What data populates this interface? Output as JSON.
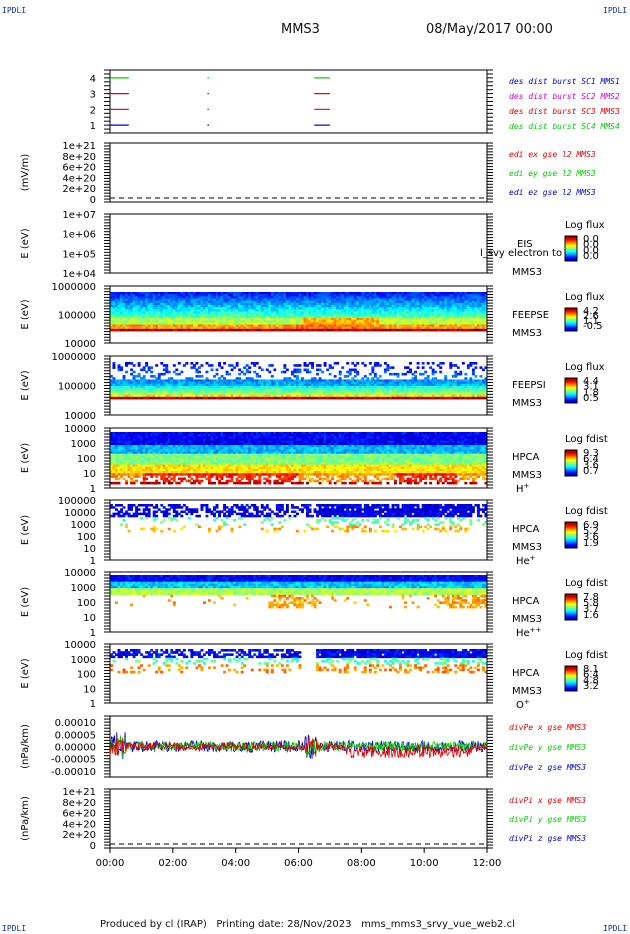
{
  "corner_label": "IPDLI",
  "header": {
    "title": "MMS3",
    "date": "08/May/2017 00:00"
  },
  "footer": {
    "produced_by": "Produced by cl (IRAP)",
    "printing_date": "Printing date: 28/Nov/2023",
    "script": "mms_mms3_srvy_vue_web2.cl"
  },
  "colors": {
    "frame": "#000000",
    "mms1": "#0000cc",
    "mms2": "#cc00cc",
    "mms3": "#dd0000",
    "mms4": "#00cc00"
  },
  "chart_data": [
    {
      "type": "line",
      "id": "des-burst",
      "yticks": [
        "1",
        "2",
        "3",
        "4"
      ],
      "ylim": [
        0.5,
        4.5
      ],
      "legend": [
        {
          "text": "des dist burst SC1 MMS1",
          "color": "#0000cc"
        },
        {
          "text": "des dist burst SC2 MMS2",
          "color": "#cc00cc"
        },
        {
          "text": "des dist burst SC3 MMS3",
          "color": "#dd0000"
        },
        {
          "text": "des dist burst SC4 MMS4",
          "color": "#00cc00"
        }
      ],
      "series": [
        {
          "level": 4,
          "color": "#00cc00",
          "intervals": [
            [
              0.0,
              0.6
            ],
            [
              3.1,
              3.15
            ],
            [
              6.5,
              7.0
            ]
          ]
        },
        {
          "level": 3,
          "color": "#dd0000",
          "intervals": [
            [
              0.0,
              0.6
            ],
            [
              3.1,
              3.15
            ],
            [
              6.5,
              7.0
            ]
          ]
        },
        {
          "level": 2,
          "color": "#cc00cc",
          "intervals": [
            [
              0.0,
              0.6
            ],
            [
              3.1,
              3.15
            ],
            [
              6.5,
              7.0
            ]
          ]
        },
        {
          "level": 1,
          "color": "#0000cc",
          "intervals": [
            [
              0.0,
              0.6
            ],
            [
              3.1,
              3.15
            ],
            [
              6.5,
              7.0
            ]
          ]
        }
      ]
    },
    {
      "type": "line",
      "id": "edi-e",
      "ylabel": "(mV/m)",
      "yticks": [
        "0",
        "2e+20",
        "4e+20",
        "6e+20",
        "8e+20",
        "1e+21"
      ],
      "legend": [
        {
          "text": "edi ex gse l2 MMS3",
          "color": "#dd0000"
        },
        {
          "text": "edi ey gse l2 MMS3",
          "color": "#00cc00"
        },
        {
          "text": "edi ez gse l2 MMS3",
          "color": "#0000cc"
        }
      ]
    },
    {
      "type": "heatmap",
      "id": "eis",
      "ylabel": "E (eV)",
      "yticks": [
        "1e+04",
        "1e+05",
        "1e+06",
        "1e+07"
      ],
      "label_lines": [
        "EIS",
        "MMS3"
      ],
      "overlay_text": "l_svy electron to",
      "colorbar_title": "Log flux",
      "colorbar_ticks": [
        "0.0",
        "0.0",
        "0.0",
        "0.0"
      ]
    },
    {
      "type": "heatmap",
      "id": "feepse",
      "ylabel": "E (eV)",
      "yticks": [
        "10000",
        "100000",
        "1000000"
      ],
      "label_lines": [
        "FEEPSE",
        "MMS3"
      ],
      "colorbar_title": "Log flux",
      "colorbar_ticks": [
        "4.2",
        "2.6",
        "1.1",
        "-0.5"
      ]
    },
    {
      "type": "heatmap",
      "id": "feepsi",
      "ylabel": "E (eV)",
      "yticks": [
        "10000",
        "100000",
        "1000000"
      ],
      "label_lines": [
        "FEEPSI",
        "MMS3"
      ],
      "colorbar_title": "Log flux",
      "colorbar_ticks": [
        "4.4",
        "3.1",
        "1.8",
        "0.5"
      ]
    },
    {
      "type": "heatmap",
      "id": "hpca-h",
      "ylabel": "E (eV)",
      "yticks": [
        "1",
        "10",
        "100",
        "1000",
        "10000"
      ],
      "label_lines": [
        "HPCA",
        "MMS3"
      ],
      "species": "H",
      "species_sup": "+",
      "colorbar_title": "Log fdist",
      "colorbar_ticks": [
        "9.3",
        "6.4",
        "3.6",
        "0.7"
      ]
    },
    {
      "type": "heatmap",
      "id": "hpca-he",
      "ylabel": "E (eV)",
      "yticks": [
        "1",
        "10",
        "100",
        "1000",
        "10000",
        "100000"
      ],
      "label_lines": [
        "HPCA",
        "MMS3"
      ],
      "species": "He",
      "species_sup": "+",
      "colorbar_title": "Log fdist",
      "colorbar_ticks": [
        "6.9",
        "5.2",
        "3.6",
        "1.9"
      ]
    },
    {
      "type": "heatmap",
      "id": "hpca-hepp",
      "ylabel": "E (eV)",
      "yticks": [
        "1",
        "10",
        "100",
        "1000",
        "10000"
      ],
      "label_lines": [
        "HPCA",
        "MMS3"
      ],
      "species": "He",
      "species_sup": "++",
      "colorbar_title": "Log fdist",
      "colorbar_ticks": [
        "7.8",
        "5.8",
        "3.7",
        "1.6"
      ]
    },
    {
      "type": "heatmap",
      "id": "hpca-o",
      "ylabel": "E (eV)",
      "yticks": [
        "1",
        "10",
        "100",
        "1000",
        "10000"
      ],
      "label_lines": [
        "HPCA",
        "MMS3"
      ],
      "species": "O",
      "species_sup": "+",
      "colorbar_title": "Log fdist",
      "colorbar_ticks": [
        "8.1",
        "6.4",
        "4.8",
        "3.2"
      ]
    },
    {
      "type": "line",
      "id": "divpe",
      "ylabel": "(nPa/km)",
      "yticks": [
        "-0.00010",
        "-0.00005",
        "0.00000",
        "0.00005",
        "0.00010"
      ],
      "ylim": [
        -0.000125,
        0.000125
      ],
      "legend": [
        {
          "text": "divPe x gse MMS3",
          "color": "#dd0000"
        },
        {
          "text": "divPe y gse MMS3",
          "color": "#00cc00"
        },
        {
          "text": "divPe z gse MMS3",
          "color": "#0000cc"
        }
      ]
    },
    {
      "type": "line",
      "id": "divpi",
      "ylabel": "(nPa/km)",
      "yticks": [
        "0",
        "2e+20",
        "4e+20",
        "6e+20",
        "8e+20",
        "1e+21"
      ],
      "legend": [
        {
          "text": "divPi x gse MMS3",
          "color": "#dd0000"
        },
        {
          "text": "divPi y gse MMS3",
          "color": "#00cc00"
        },
        {
          "text": "divPi z gse MMS3",
          "color": "#0000cc"
        }
      ]
    }
  ],
  "xaxis": {
    "ticks": [
      "00:00",
      "02:00",
      "04:00",
      "06:00",
      "08:00",
      "10:00",
      "12:00"
    ],
    "xlim_hours": [
      0,
      12
    ]
  }
}
